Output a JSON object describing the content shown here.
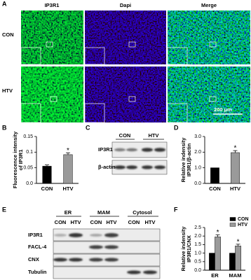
{
  "figure": {
    "panel_labels": [
      "A",
      "B",
      "C",
      "D",
      "E",
      "F"
    ],
    "a": {
      "columns": [
        "IP3R1",
        "Dapi",
        "Merge"
      ],
      "rows": [
        "CON",
        "HTV"
      ],
      "scale_bar": "200 μm"
    },
    "c": {
      "lanes": [
        "CON",
        "HTV"
      ],
      "bands": [
        "IP3R1",
        "β-actin"
      ]
    },
    "e": {
      "fractions": [
        "ER",
        "MAM",
        "Cytosol"
      ],
      "lanes": [
        "CON",
        "HTV"
      ],
      "bands": [
        "IP3R1",
        "FACL-4",
        "CNX",
        "Tubulin"
      ]
    }
  },
  "chart_data": [
    {
      "type": "bar",
      "ylabel": [
        "Fluorescence intensity",
        "of IP3R1"
      ],
      "categories": [
        "CON",
        "HTV"
      ],
      "values": [
        0.055,
        0.092
      ],
      "errors": [
        0.004,
        0.006
      ],
      "colors": [
        "#000000",
        "#9a9a9a"
      ],
      "significance": [
        null,
        "*"
      ],
      "ylim": [
        0,
        0.15
      ],
      "yticks": [
        {
          "value": 0,
          "label": "0.0"
        },
        0.05,
        0.1,
        0.15
      ]
    },
    {
      "type": "bar",
      "ylabel": [
        "Relative indensity",
        "IP3R1/β-actin"
      ],
      "categories": [
        "CON",
        "HTV"
      ],
      "values": [
        1.0,
        1.97
      ],
      "errors": [
        null,
        0.13
      ],
      "colors": [
        "#000000",
        "#9a9a9a"
      ],
      "significance": [
        null,
        "*"
      ],
      "ylim": [
        0,
        3
      ],
      "yticks": [
        {
          "value": 0,
          "label": "0.0"
        },
        {
          "value": 1,
          "label": "1.0"
        },
        {
          "value": 2,
          "label": "2.0"
        },
        {
          "value": 3,
          "label": "3.0"
        }
      ]
    },
    {
      "type": "grouped_bar",
      "ylabel": [
        "Relative indensity",
        "IP3R1/CNX"
      ],
      "categories": [
        "ER",
        "MAM"
      ],
      "series": [
        {
          "name": "CON",
          "color": "#000000",
          "values": [
            1.0,
            1.0
          ],
          "errors": [
            null,
            null
          ],
          "significance": [
            null,
            null
          ]
        },
        {
          "name": "HTV",
          "color": "#9a9a9a",
          "values": [
            1.95,
            1.42
          ],
          "errors": [
            0.12,
            0.1
          ],
          "significance": [
            "*",
            "*"
          ]
        }
      ],
      "legend": "upper right",
      "ylim": [
        0,
        2.5
      ],
      "yticks": [
        {
          "value": 0,
          "label": "0.0"
        },
        {
          "value": 0.5,
          "label": "0.5"
        },
        {
          "value": 1,
          "label": "1.0"
        },
        {
          "value": 1.5,
          "label": "1.5"
        },
        {
          "value": 2,
          "label": "2.0"
        },
        {
          "value": 2.5,
          "label": "2.5"
        }
      ]
    }
  ]
}
